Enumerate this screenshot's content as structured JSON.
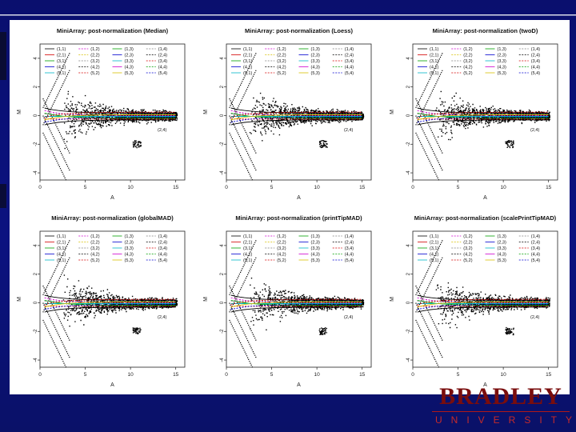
{
  "colors": {
    "background": "#0b1280",
    "accent_bar": "#ffffff",
    "brand": "#7a0d0d",
    "brand_sub": "#c62a2a"
  },
  "brand": {
    "name": "BRADLEY",
    "sub": "UNIVERSITY"
  },
  "chart_data": [
    {
      "type": "scatter",
      "title": "MiniArray: post-normalization (Median)",
      "xlabel": "A",
      "ylabel": "M",
      "xlim": [
        0,
        16
      ],
      "ylim": [
        -4.5,
        5
      ],
      "xticks": [
        0,
        5,
        10,
        15
      ],
      "yticks": [
        -4,
        -2,
        0,
        2,
        4
      ],
      "legend": [
        "(1,1)",
        "(2,1)",
        "(3,1)",
        "(4,1)",
        "(5,1)",
        "(1,2)",
        "(2,2)",
        "(3,2)",
        "(4,2)",
        "(5,2)",
        "(1,3)",
        "(2,3)",
        "(3,3)",
        "(4,3)",
        "(5,3)",
        "(1,4)",
        "(2,4)",
        "(3,4)",
        "(4,4)",
        "(5,4)"
      ],
      "last_legend": "(2,4)"
    },
    {
      "type": "scatter",
      "title": "MiniArray: post-normalization (Loess)",
      "xlabel": "A",
      "ylabel": "M",
      "xlim": [
        0,
        16
      ],
      "ylim": [
        -4.5,
        5
      ],
      "xticks": [
        0,
        5,
        10,
        15
      ],
      "yticks": [
        -4,
        -2,
        0,
        2,
        4
      ],
      "legend": [
        "(1,1)",
        "(2,1)",
        "(3,1)",
        "(4,1)",
        "(5,1)",
        "(1,2)",
        "(2,2)",
        "(3,2)",
        "(4,2)",
        "(5,2)",
        "(1,3)",
        "(2,3)",
        "(3,3)",
        "(4,3)",
        "(5,3)",
        "(1,4)",
        "(2,4)",
        "(3,4)",
        "(4,4)",
        "(5,4)"
      ],
      "last_legend": "(2,4)"
    },
    {
      "type": "scatter",
      "title": "MiniArray: post-normalization (twoD)",
      "xlabel": "A",
      "ylabel": "M",
      "xlim": [
        0,
        16
      ],
      "ylim": [
        -4.5,
        5
      ],
      "xticks": [
        0,
        5,
        10,
        15
      ],
      "yticks": [
        -4,
        -2,
        0,
        2,
        4
      ],
      "legend": [
        "(1,1)",
        "(2,1)",
        "(3,1)",
        "(4,1)",
        "(5,1)",
        "(1,2)",
        "(2,2)",
        "(3,2)",
        "(4,2)",
        "(5,2)",
        "(1,3)",
        "(2,3)",
        "(3,3)",
        "(4,3)",
        "(5,3)",
        "(1,4)",
        "(2,4)",
        "(3,4)",
        "(4,4)",
        "(5,4)"
      ],
      "last_legend": "(2,4)"
    },
    {
      "type": "scatter",
      "title": "MiniArray: post-normalization (globalMAD)",
      "xlabel": "A",
      "ylabel": "M",
      "xlim": [
        0,
        16
      ],
      "ylim": [
        -4.5,
        5
      ],
      "xticks": [
        0,
        5,
        10,
        15
      ],
      "yticks": [
        -4,
        -2,
        0,
        2,
        4
      ],
      "legend": [
        "(1,1)",
        "(2,1)",
        "(3,1)",
        "(4,1)",
        "(5,1)",
        "(1,2)",
        "(2,2)",
        "(3,2)",
        "(4,2)",
        "(5,2)",
        "(1,3)",
        "(2,3)",
        "(3,3)",
        "(4,3)",
        "(5,3)",
        "(1,4)",
        "(2,4)",
        "(3,4)",
        "(4,4)",
        "(5,4)"
      ],
      "last_legend": "(2,4)"
    },
    {
      "type": "scatter",
      "title": "MiniArray: post-normalization (printTipMAD)",
      "xlabel": "A",
      "ylabel": "M",
      "xlim": [
        0,
        16
      ],
      "ylim": [
        -4.5,
        5
      ],
      "xticks": [
        0,
        5,
        10,
        15
      ],
      "yticks": [
        -4,
        -2,
        0,
        2,
        4
      ],
      "legend": [
        "(1,1)",
        "(2,1)",
        "(3,1)",
        "(4,1)",
        "(5,1)",
        "(1,2)",
        "(2,2)",
        "(3,2)",
        "(4,2)",
        "(5,2)",
        "(1,3)",
        "(2,3)",
        "(3,3)",
        "(4,3)",
        "(5,3)",
        "(1,4)",
        "(2,4)",
        "(3,4)",
        "(4,4)",
        "(5,4)"
      ],
      "last_legend": "(2,4)"
    },
    {
      "type": "scatter",
      "title": "MiniArray: post-normalization (scalePrintTipMAD)",
      "xlabel": "A",
      "ylabel": "M",
      "xlim": [
        0,
        16
      ],
      "ylim": [
        -4.5,
        5
      ],
      "xticks": [
        0,
        5,
        10,
        15
      ],
      "yticks": [
        -4,
        -2,
        0,
        2,
        4
      ],
      "legend": [
        "(1,1)",
        "(2,1)",
        "(3,1)",
        "(4,1)",
        "(5,1)",
        "(1,2)",
        "(2,2)",
        "(3,2)",
        "(4,2)",
        "(5,2)",
        "(1,3)",
        "(2,3)",
        "(3,3)",
        "(4,3)",
        "(5,3)",
        "(1,4)",
        "(2,4)",
        "(3,4)",
        "(4,4)",
        "(5,4)"
      ],
      "last_legend": "(2,4)"
    }
  ]
}
